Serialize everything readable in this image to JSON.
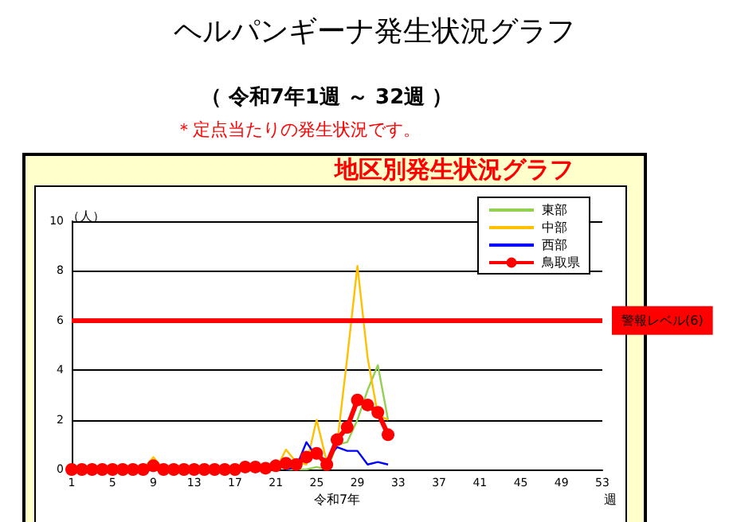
{
  "chart_data": {
    "type": "line",
    "title": "ヘルパンギーナ発生状況グラフ",
    "subtitle": "（ 令和7年1週 ～ 32週 ）",
    "annotations": [
      "＊定点当たりの発生状況です。",
      "地区別発生状況グラフ",
      "週"
    ],
    "xlabel": "令和7年",
    "ylabel": "（人）",
    "categories": [
      "1",
      null,
      null,
      null,
      "5",
      null,
      null,
      null,
      "9",
      null,
      null,
      null,
      "13",
      null,
      null,
      null,
      "17",
      null,
      null,
      null,
      "21",
      null,
      null,
      null,
      "25",
      null,
      null,
      null,
      "29",
      null,
      null,
      null,
      "33",
      null,
      null,
      null,
      "37",
      null,
      null,
      null,
      "41",
      null,
      null,
      null,
      "45",
      null,
      null,
      null,
      "49",
      null,
      null,
      null,
      "53"
    ],
    "series": [
      {
        "name": "東部",
        "color": "#92d050",
        "marker": "none",
        "values": [
          null,
          null,
          null,
          null,
          null,
          null,
          null,
          null,
          null,
          null,
          null,
          null,
          null,
          null,
          null,
          null,
          null,
          null,
          null,
          null,
          null,
          0,
          0,
          0,
          0.1,
          0,
          1,
          1.1,
          2,
          3.2,
          4.2,
          2,
          null,
          null,
          null,
          null,
          null,
          null,
          null,
          null,
          null,
          null,
          null,
          null,
          null,
          null,
          null,
          null,
          null,
          null,
          null,
          null,
          null
        ]
      },
      {
        "name": "中部",
        "color": "#ffc000",
        "marker": "none",
        "values": [
          null,
          null,
          null,
          null,
          null,
          null,
          null,
          0,
          0.5,
          0,
          null,
          null,
          null,
          null,
          null,
          null,
          null,
          null,
          null,
          null,
          0,
          0.8,
          0.3,
          0.2,
          2,
          0.3,
          1,
          4.5,
          8.2,
          4.5,
          2.2,
          2,
          null,
          null,
          null,
          null,
          null,
          null,
          null,
          null,
          null,
          null,
          null,
          null,
          null,
          null,
          null,
          null,
          null,
          null,
          null,
          null,
          null
        ]
      },
      {
        "name": "西部",
        "color": "#0000ff",
        "marker": "none",
        "values": [
          null,
          null,
          null,
          null,
          null,
          null,
          null,
          null,
          null,
          null,
          null,
          null,
          null,
          null,
          null,
          null,
          null,
          null,
          null,
          null,
          null,
          0,
          0.1,
          1.1,
          0.5,
          0.4,
          0.9,
          0.75,
          0.75,
          0.2,
          0.3,
          0.2,
          null,
          null,
          null,
          null,
          null,
          null,
          null,
          null,
          null,
          null,
          null,
          null,
          null,
          null,
          null,
          null,
          null,
          null,
          null,
          null,
          null
        ]
      },
      {
        "name": "鳥取県",
        "color": "#ff0000",
        "marker": "circle",
        "values": [
          0,
          0,
          0,
          0,
          0,
          0,
          0,
          0,
          0.15,
          0,
          0,
          0,
          0,
          0,
          0,
          0,
          0,
          0.1,
          0.1,
          0.05,
          0.15,
          0.25,
          0.2,
          0.5,
          0.65,
          0.2,
          1.2,
          1.7,
          2.8,
          2.6,
          2.3,
          1.4,
          null,
          null,
          null,
          null,
          null,
          null,
          null,
          null,
          null,
          null,
          null,
          null,
          null,
          null,
          null,
          null,
          null,
          null,
          null,
          null,
          null
        ]
      }
    ],
    "ylim": [
      0,
      10
    ],
    "yticks": [
      0,
      2,
      4,
      6,
      8,
      10
    ],
    "grid": "y",
    "legend": "top right",
    "ref_lines": [
      {
        "axis": "y",
        "value": 6,
        "label": "警報レベル(6)",
        "color": "#ff0000"
      }
    ]
  }
}
